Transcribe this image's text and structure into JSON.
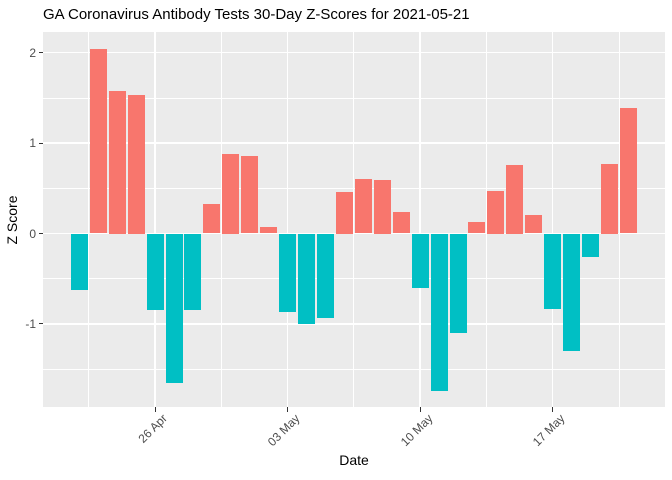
{
  "chart_data": {
    "type": "bar",
    "title": "GA Coronavirus Antibody Tests 30-Day Z-Scores for 2021-05-21",
    "xlabel": "Date",
    "ylabel": "Z Score",
    "dates": [
      "2021-04-22",
      "2021-04-23",
      "2021-04-24",
      "2021-04-25",
      "2021-04-26",
      "2021-04-27",
      "2021-04-28",
      "2021-04-29",
      "2021-04-30",
      "2021-05-01",
      "2021-05-02",
      "2021-05-03",
      "2021-05-04",
      "2021-05-05",
      "2021-05-06",
      "2021-05-07",
      "2021-05-08",
      "2021-05-09",
      "2021-05-10",
      "2021-05-11",
      "2021-05-12",
      "2021-05-13",
      "2021-05-14",
      "2021-05-15",
      "2021-05-16",
      "2021-05-17",
      "2021-05-18",
      "2021-05-19",
      "2021-05-20",
      "2021-05-21"
    ],
    "values": [
      -0.63,
      2.04,
      1.58,
      1.53,
      -0.85,
      -1.65,
      -0.85,
      0.33,
      0.88,
      0.86,
      0.07,
      -0.87,
      -1.0,
      -0.94,
      0.46,
      0.6,
      0.59,
      0.24,
      -0.6,
      -1.74,
      -1.1,
      0.13,
      0.47,
      0.76,
      0.21,
      -0.83,
      -1.3,
      -0.26,
      0.77,
      1.39
    ],
    "ylim": [
      -1.92,
      2.23
    ],
    "y_major_ticks": [
      {
        "value": -1,
        "label": "-1"
      },
      {
        "value": 0,
        "label": "0"
      },
      {
        "value": 1,
        "label": "1"
      },
      {
        "value": 2,
        "label": "2"
      }
    ],
    "y_minor_ticks": [
      -1.5,
      -0.5,
      0.5,
      1.5
    ],
    "x_major_ticks": [
      {
        "day_index": 4,
        "label": "26 Apr"
      },
      {
        "day_index": 11,
        "label": "03 May"
      },
      {
        "day_index": 18,
        "label": "10 May"
      },
      {
        "day_index": 25,
        "label": "17 May"
      }
    ],
    "x_minor_day_positions": [
      0.5,
      7.5,
      14.5,
      21.5,
      28.5
    ],
    "colors": {
      "positive": "#F8766D",
      "negative": "#00BFC4",
      "panel_bg": "#EBEBEB",
      "grid": "#FFFFFF",
      "tick_text": "#4d4d4d",
      "title_text": "#000000"
    },
    "grid": "on",
    "legend": "none"
  }
}
